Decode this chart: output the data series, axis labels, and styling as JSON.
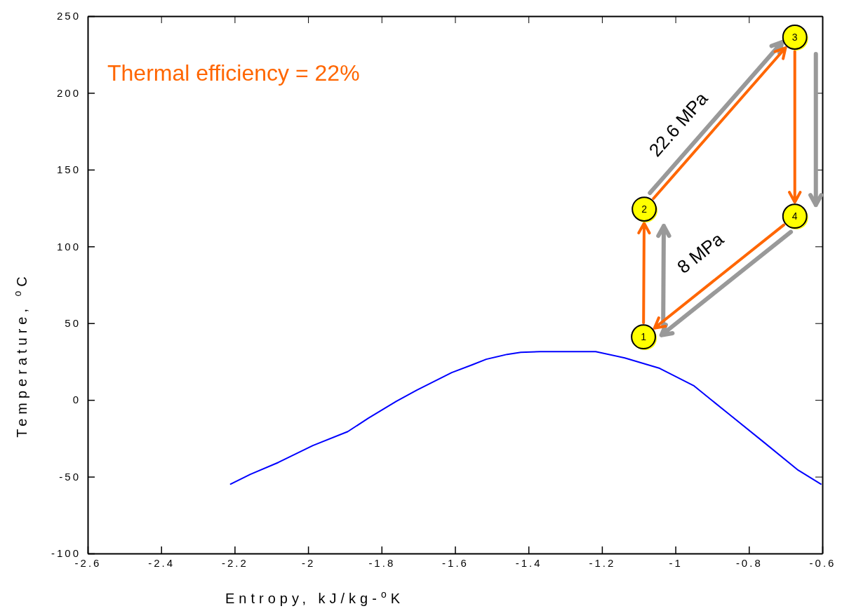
{
  "chart_data": {
    "type": "line",
    "xlabel": "Entropy, kJ/kg-$^{o}$K",
    "ylabel": "Temperature, $^{o}$C",
    "xlim": [
      -2.6,
      -0.6
    ],
    "xticks": [
      -2.6,
      -2.4,
      -2.2,
      -2,
      -1.8,
      -1.6,
      -1.4,
      -1.2,
      -1,
      -0.8,
      -0.6
    ],
    "ylim": [
      -100,
      250
    ],
    "yticks": [
      -100,
      -50,
      0,
      50,
      100,
      150,
      200,
      250
    ],
    "grid": false,
    "series": [
      {
        "color": "#0000ff",
        "x": [
          -2.211,
          -2.157,
          -2.081,
          -1.987,
          -1.892,
          -1.836,
          -1.76,
          -1.704,
          -1.609,
          -1.553,
          -1.515,
          -1.458,
          -1.421,
          -1.368,
          -1.217,
          -1.138,
          -1.043,
          -0.949,
          -0.855,
          -0.76,
          -0.666,
          -0.604
        ],
        "values": [
          -54.8,
          -48.4,
          -40.7,
          -29.7,
          -20.6,
          -11.9,
          -0.9,
          6.4,
          17.8,
          22.9,
          26.5,
          29.7,
          31,
          31.5,
          31.5,
          27.4,
          20.6,
          9.1,
          -9.1,
          -27.4,
          -45.7,
          -54.8
        ]
      },
      {
        "type": "scatter",
        "color": "#ffff00",
        "marker": "circle",
        "x": [
          -1.087,
          -1.085,
          -0.675,
          -0.675
        ],
        "values": [
          41.1,
          124.3,
          236.3,
          119.7
        ]
      }
    ],
    "annotations": [
      "Thermal efficiency = 22%",
      "22.6 MPa",
      "8 MPa",
      {
        "text": "1",
        "x": -1.087,
        "y": 41.1
      },
      {
        "text": "2",
        "x": -1.085,
        "y": 124.3
      },
      {
        "text": "3",
        "x": -0.675,
        "y": 236.3
      },
      {
        "text": "4",
        "x": -0.675,
        "y": 119.7
      }
    ]
  }
}
